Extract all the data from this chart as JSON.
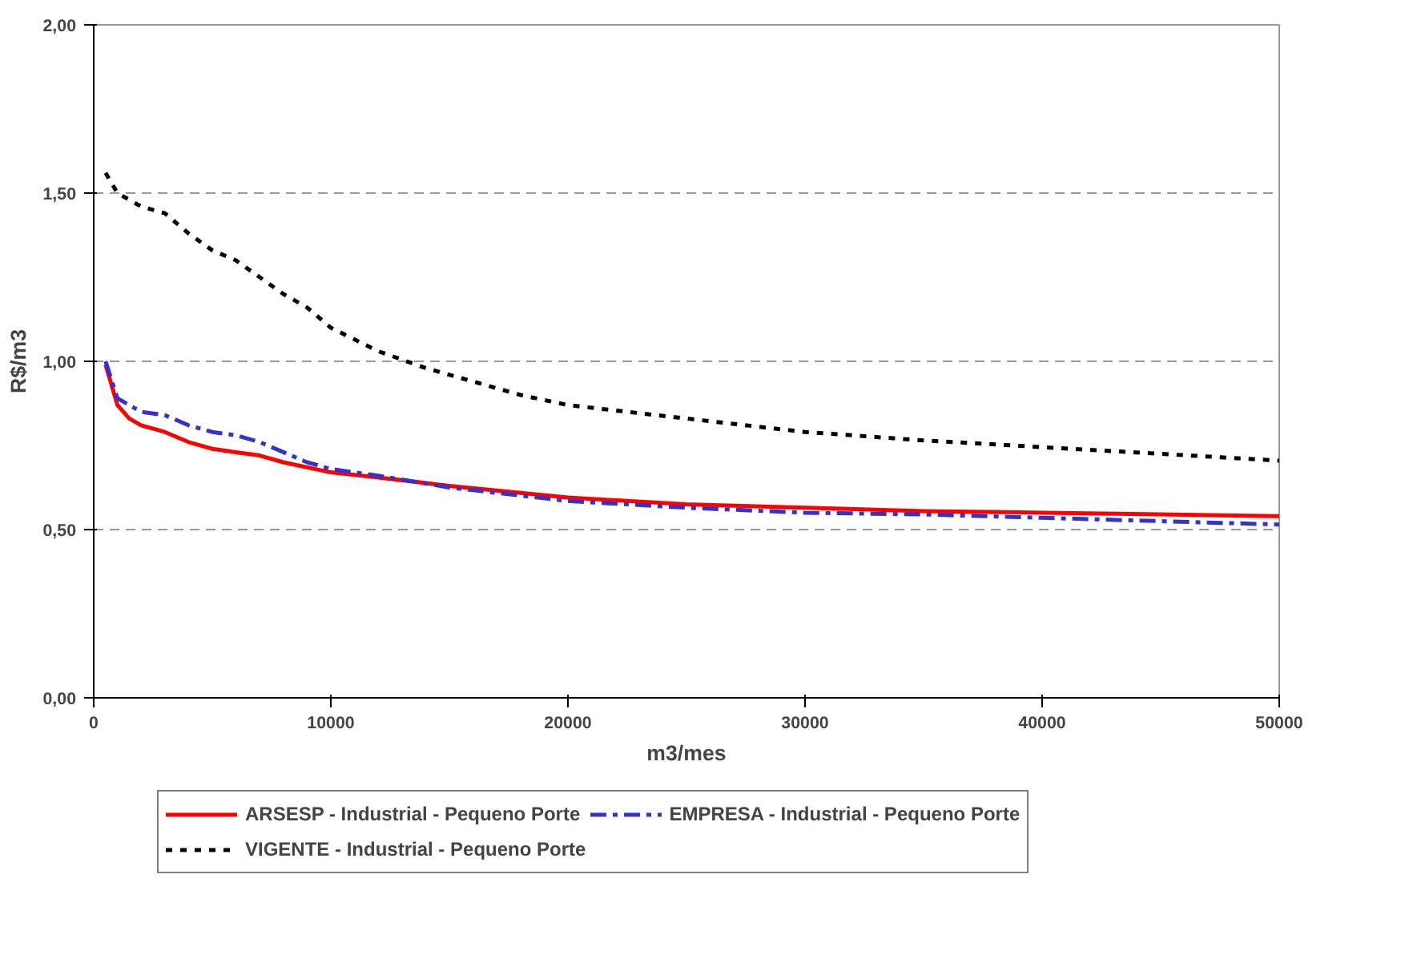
{
  "chart_data": {
    "type": "line",
    "xlabel": "m3/mes",
    "ylabel": "R$/m3",
    "xlim": [
      0,
      50000
    ],
    "xticks": [
      0,
      10000,
      20000,
      30000,
      40000,
      50000
    ],
    "ylim": [
      0,
      2
    ],
    "yticks": [
      {
        "value": 0,
        "label": "0,00"
      },
      {
        "value": 0.5,
        "label": "0,50"
      },
      {
        "value": 1,
        "label": "1,00"
      },
      {
        "value": 1.5,
        "label": "1,50"
      },
      {
        "value": 2,
        "label": "2,00"
      }
    ],
    "grid": "y",
    "legend": "bottom",
    "series": [
      {
        "name": "ARSESP - Industrial - Pequeno Porte",
        "color": "#ff0000",
        "line_style": "solid",
        "x": [
          500,
          1000,
          1500,
          2000,
          3000,
          4000,
          5000,
          6000,
          7000,
          8000,
          10000,
          12000,
          15000,
          20000,
          25000,
          30000,
          35000,
          40000,
          45000,
          50000
        ],
        "values": [
          0.99,
          0.87,
          0.83,
          0.81,
          0.79,
          0.76,
          0.74,
          0.73,
          0.72,
          0.7,
          0.67,
          0.655,
          0.63,
          0.595,
          0.575,
          0.565,
          0.555,
          0.55,
          0.545,
          0.54
        ]
      },
      {
        "name": "EMPRESA - Industrial - Pequeno Porte",
        "color": "#3333cc",
        "line_style": "dashed",
        "x": [
          500,
          1000,
          2000,
          3000,
          4000,
          5000,
          6000,
          7000,
          8000,
          9000,
          10000,
          12000,
          15000,
          20000,
          25000,
          30000,
          35000,
          40000,
          45000,
          50000
        ],
        "values": [
          1.0,
          0.89,
          0.85,
          0.84,
          0.81,
          0.79,
          0.78,
          0.76,
          0.73,
          0.7,
          0.68,
          0.66,
          0.625,
          0.585,
          0.565,
          0.55,
          0.545,
          0.535,
          0.525,
          0.515
        ]
      },
      {
        "name": "VIGENTE - Industrial - Pequeno Porte",
        "color": "#000000",
        "line_style": "dotted",
        "x": [
          500,
          1000,
          2000,
          3000,
          4000,
          5000,
          6000,
          7000,
          8000,
          9000,
          10000,
          12000,
          14000,
          16000,
          18000,
          20000,
          25000,
          30000,
          35000,
          40000,
          45000,
          50000
        ],
        "values": [
          1.56,
          1.5,
          1.46,
          1.44,
          1.38,
          1.33,
          1.3,
          1.25,
          1.2,
          1.16,
          1.1,
          1.03,
          0.98,
          0.94,
          0.9,
          0.87,
          0.83,
          0.79,
          0.765,
          0.745,
          0.725,
          0.705
        ]
      }
    ]
  }
}
